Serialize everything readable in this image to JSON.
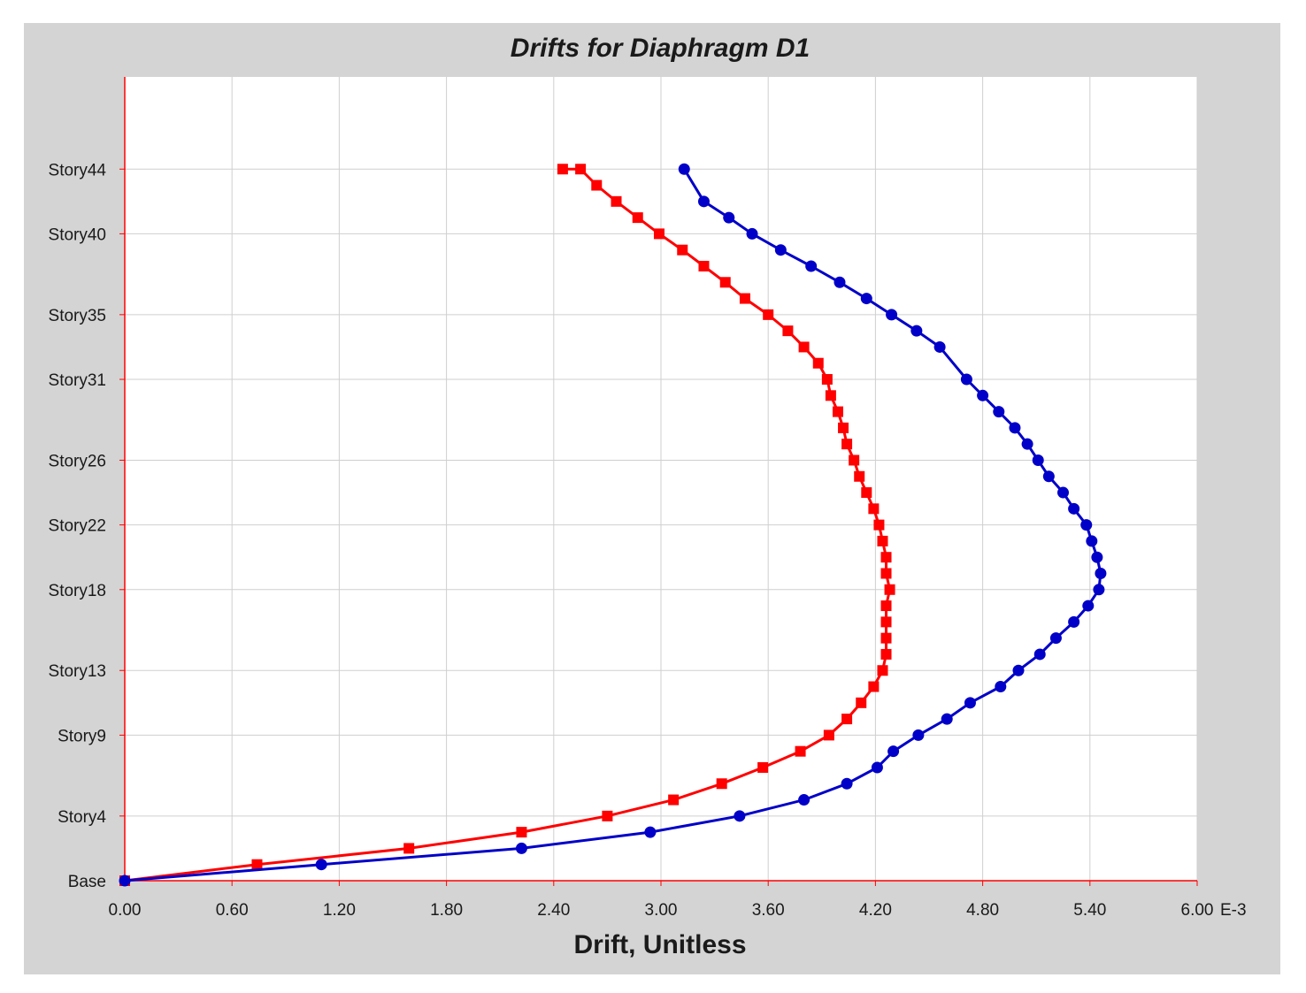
{
  "chart_data": {
    "type": "line",
    "title": "Drifts for Diaphragm D1",
    "xlabel": "Drift, Unitless",
    "x_unit_suffix": "E-3",
    "xlim": [
      0,
      6.0
    ],
    "x_ticks": [
      0.0,
      0.6,
      1.2,
      1.8,
      2.4,
      3.0,
      3.6,
      4.2,
      4.8,
      5.4,
      6.0
    ],
    "x_tick_labels": [
      "0.00",
      "0.60",
      "1.20",
      "1.80",
      "2.40",
      "3.00",
      "3.60",
      "4.20",
      "4.80",
      "5.40",
      "6.00"
    ],
    "ylim": [
      0,
      49.7
    ],
    "y_ticks": [
      {
        "level": 0,
        "label": "Base"
      },
      {
        "level": 4,
        "label": "Story4"
      },
      {
        "level": 9,
        "label": "Story9"
      },
      {
        "level": 13,
        "label": "Story13"
      },
      {
        "level": 18,
        "label": "Story18"
      },
      {
        "level": 22,
        "label": "Story22"
      },
      {
        "level": 26,
        "label": "Story26"
      },
      {
        "level": 31,
        "label": "Story31"
      },
      {
        "level": 35,
        "label": "Story35"
      },
      {
        "level": 40,
        "label": "Story40"
      },
      {
        "level": 44,
        "label": "Story44"
      }
    ],
    "grid": true,
    "series": [
      {
        "color": "#ff0000",
        "marker": "square",
        "x": [
          0.0,
          0.74,
          1.59,
          2.22,
          2.7,
          3.07,
          3.34,
          3.57,
          3.78,
          3.94,
          4.04,
          4.12,
          4.19,
          4.24,
          4.26,
          4.26,
          4.26,
          4.26,
          4.28,
          4.26,
          4.26,
          4.24,
          4.22,
          4.19,
          4.15,
          4.11,
          4.08,
          4.04,
          4.02,
          3.99,
          3.95,
          3.93,
          3.88,
          3.8,
          3.71,
          3.6,
          3.47,
          3.36,
          3.24,
          3.12,
          2.99,
          2.87,
          2.75,
          2.64,
          2.55,
          2.45
        ],
        "y": [
          0,
          1,
          2,
          3,
          4,
          5,
          6,
          7,
          8,
          9,
          10,
          11,
          12,
          13,
          14,
          15,
          16,
          17,
          18,
          19,
          20,
          21,
          22,
          23,
          24,
          25,
          26,
          27,
          28,
          29,
          30,
          31,
          32,
          33,
          34,
          35,
          36,
          37,
          38,
          39,
          40,
          41,
          42,
          43,
          44,
          44
        ]
      },
      {
        "color": "#0000c8",
        "marker": "circle",
        "x": [
          0.0,
          1.1,
          2.22,
          2.94,
          3.44,
          3.8,
          4.04,
          4.21,
          4.3,
          4.44,
          4.6,
          4.73,
          4.9,
          5.0,
          5.12,
          5.21,
          5.31,
          5.39,
          5.45,
          5.46,
          5.44,
          5.41,
          5.38,
          5.31,
          5.25,
          5.17,
          5.11,
          5.05,
          4.98,
          4.89,
          4.8,
          4.71,
          4.56,
          4.43,
          4.29,
          4.15,
          4.0,
          3.84,
          3.67,
          3.51,
          3.38,
          3.24,
          3.13
        ],
        "y": [
          0,
          1,
          2,
          3,
          4,
          5,
          6,
          7,
          8,
          9,
          10,
          11,
          12,
          13,
          14,
          15,
          16,
          17,
          18,
          19,
          20,
          21,
          22,
          23,
          24,
          25,
          26,
          27,
          28,
          29,
          30,
          31,
          33,
          34,
          35,
          36,
          37,
          38,
          39,
          40,
          41,
          42,
          44
        ]
      }
    ]
  }
}
